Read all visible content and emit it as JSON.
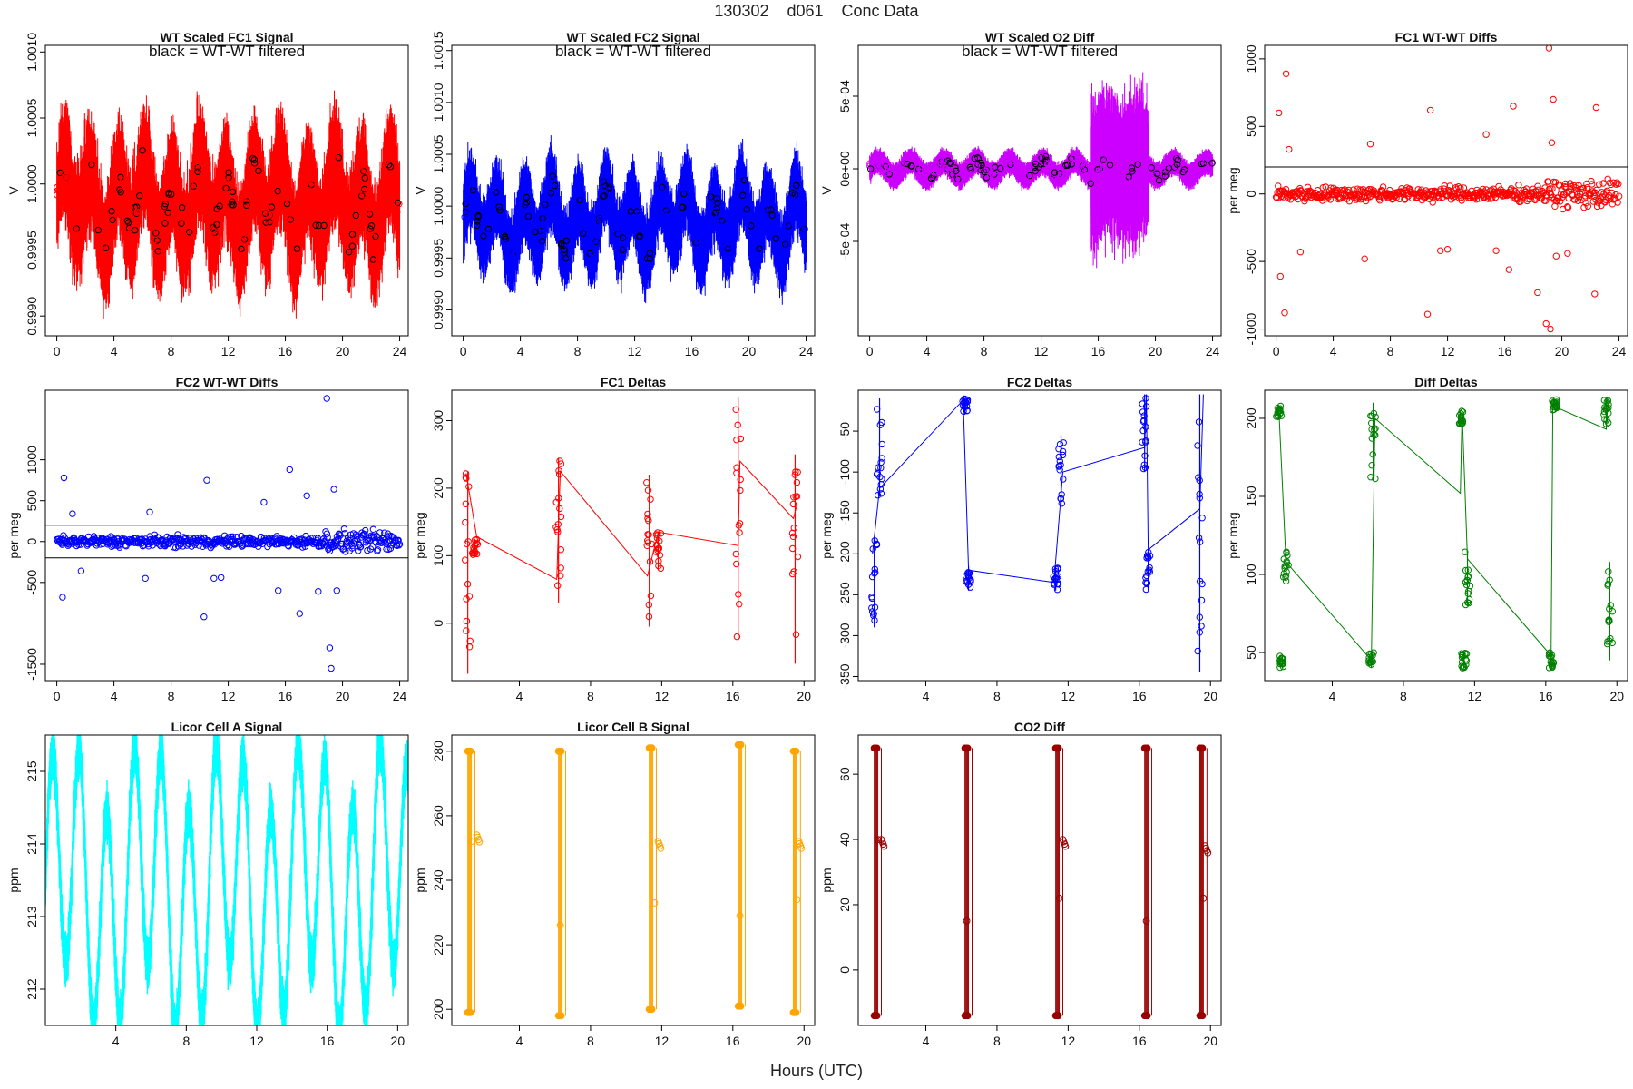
{
  "page": {
    "title": "130302    d061    Conc Data",
    "xlabel": "Hours (UTC)"
  },
  "chart_data": [
    {
      "id": "p1",
      "type": "line",
      "title": "WT Scaled FC1 Signal",
      "annotation": "black = WT-WT filtered",
      "ylabel": "V",
      "xlim": [
        -0.8,
        24.6
      ],
      "ylim": [
        0.99885,
        1.00105
      ],
      "xticks": [
        0,
        4,
        8,
        12,
        16,
        20,
        24
      ],
      "yticks": [
        0.999,
        0.9995,
        1.0,
        1.0005,
        1.001
      ],
      "ytick_labels": [
        "0.9990",
        "0.9995",
        "1.0000",
        "1.0005",
        "1.0010"
      ],
      "ytick_rotate": true,
      "color": "#ff0000",
      "overlay_color": "#000000",
      "style": "noise",
      "center": 0.99985,
      "amp": 0.00025,
      "osc_amp": 0.00025,
      "osc_period": 1.9,
      "x_range": [
        0,
        24
      ],
      "points": []
    },
    {
      "id": "p2",
      "type": "line",
      "title": "WT Scaled FC2 Signal",
      "annotation": "black = WT-WT filtered",
      "ylabel": "V",
      "xlim": [
        -0.8,
        24.6
      ],
      "ylim": [
        0.99875,
        1.00155
      ],
      "xticks": [
        0,
        4,
        8,
        12,
        16,
        20,
        24
      ],
      "yticks": [
        0.999,
        0.9995,
        1.0,
        1.0005,
        1.001,
        1.0015
      ],
      "ytick_labels": [
        "0.9990",
        "0.9995",
        "1.0000",
        "1.0005",
        "1.0010",
        "1.0015"
      ],
      "ytick_rotate": true,
      "color": "#0000ff",
      "overlay_color": "#000000",
      "style": "noise",
      "center": 0.99985,
      "amp": 0.00022,
      "osc_amp": 0.00025,
      "osc_period": 1.9,
      "x_range": [
        0,
        24
      ],
      "points": []
    },
    {
      "id": "p3",
      "type": "line",
      "title": "WT Scaled O2 Diff",
      "annotation": "black = WT-WT filtered",
      "ylabel": "V",
      "xlim": [
        -0.8,
        24.6
      ],
      "ylim": [
        -0.00115,
        0.00085
      ],
      "xticks": [
        0,
        4,
        8,
        12,
        16,
        20,
        24
      ],
      "yticks": [
        -0.0005,
        0.0,
        0.0005
      ],
      "ytick_labels": [
        "-5e-04",
        "0e+00",
        "5e-04"
      ],
      "ytick_rotate": true,
      "color": "#cc00ff",
      "overlay_color": "#000000",
      "style": "o2",
      "center": 0.0,
      "amp": 6e-05,
      "osc_amp": 5e-05,
      "osc_period": 2.3,
      "x_range": [
        0,
        24
      ],
      "points": []
    },
    {
      "id": "p4",
      "type": "scatter",
      "title": "FC1 WT-WT Diffs",
      "ylabel": "per meg",
      "xlim": [
        -0.8,
        24.6
      ],
      "ylim": [
        -1050,
        1100
      ],
      "xticks": [
        0,
        4,
        8,
        12,
        16,
        20,
        24
      ],
      "yticks": [
        -1000,
        -500,
        0,
        500,
        1000
      ],
      "ytick_labels": [
        "-1000",
        "-500",
        "0",
        "500",
        "1000"
      ],
      "ytick_rotate": true,
      "color": "#ff0000",
      "style": "scatter",
      "hlines": [
        200,
        -200
      ],
      "spread": 55,
      "x_range": [
        0,
        24
      ],
      "outliers": [
        [
          0.2,
          600
        ],
        [
          0.3,
          -610
        ],
        [
          0.6,
          -880
        ],
        [
          0.7,
          890
        ],
        [
          0.9,
          330
        ],
        [
          1.7,
          -430
        ],
        [
          6.2,
          -480
        ],
        [
          6.6,
          370
        ],
        [
          10.6,
          -890
        ],
        [
          10.8,
          620
        ],
        [
          11.5,
          -420
        ],
        [
          12.0,
          -410
        ],
        [
          14.7,
          440
        ],
        [
          15.4,
          -420
        ],
        [
          16.3,
          -560
        ],
        [
          16.6,
          650
        ],
        [
          18.3,
          -730
        ],
        [
          18.9,
          -960
        ],
        [
          19.1,
          1080
        ],
        [
          19.2,
          -1000
        ],
        [
          19.3,
          380
        ],
        [
          19.4,
          700
        ],
        [
          19.6,
          -460
        ],
        [
          20.4,
          -440
        ],
        [
          22.3,
          -740
        ],
        [
          22.4,
          640
        ]
      ]
    },
    {
      "id": "p5",
      "type": "scatter",
      "title": "FC2 WT-WT Diffs",
      "ylabel": "per meg",
      "xlim": [
        -0.8,
        24.6
      ],
      "ylim": [
        -1700,
        1850
      ],
      "xticks": [
        0,
        4,
        8,
        12,
        16,
        20,
        24
      ],
      "yticks": [
        -1500,
        -500,
        0,
        500,
        1000
      ],
      "ytick_labels": [
        "-1500",
        "-500",
        "0",
        "500",
        "1000"
      ],
      "ytick_rotate": true,
      "color": "#0000ff",
      "style": "scatter",
      "hlines": [
        200,
        -200
      ],
      "spread": 70,
      "x_range": [
        0,
        24
      ],
      "outliers": [
        [
          0.4,
          -680
        ],
        [
          0.5,
          780
        ],
        [
          1.1,
          340
        ],
        [
          1.7,
          -360
        ],
        [
          6.2,
          -450
        ],
        [
          6.5,
          360
        ],
        [
          10.3,
          -920
        ],
        [
          10.5,
          750
        ],
        [
          11.0,
          -450
        ],
        [
          11.5,
          -440
        ],
        [
          14.5,
          480
        ],
        [
          15.5,
          -600
        ],
        [
          16.3,
          880
        ],
        [
          17.0,
          -880
        ],
        [
          17.5,
          560
        ],
        [
          18.3,
          -610
        ],
        [
          18.9,
          1750
        ],
        [
          19.1,
          -1300
        ],
        [
          19.2,
          -1550
        ],
        [
          19.4,
          640
        ],
        [
          19.6,
          -600
        ]
      ]
    },
    {
      "id": "p6",
      "type": "line",
      "title": "FC1 Deltas",
      "ylabel": "per meg",
      "xlim": [
        0.2,
        20.6
      ],
      "ylim": [
        -85,
        345
      ],
      "xticks": [
        4,
        8,
        12,
        16,
        20
      ],
      "yticks": [
        0,
        100,
        200,
        300
      ],
      "ytick_labels": [
        "0",
        "100",
        "200",
        "300"
      ],
      "ytick_rotate": true,
      "color": "#ff0000",
      "style": "deltas",
      "clusters": [
        [
          1.1,
          225,
          -75
        ],
        [
          1.5,
          125,
          100
        ],
        [
          6.2,
          245,
          30
        ],
        [
          11.3,
          220,
          -5
        ],
        [
          11.8,
          135,
          80
        ],
        [
          16.3,
          335,
          -25
        ],
        [
          19.5,
          250,
          -60
        ]
      ],
      "path": [
        [
          1.0,
          222
        ],
        [
          1.6,
          128
        ],
        [
          6.1,
          65
        ],
        [
          6.3,
          225
        ],
        [
          11.2,
          70
        ],
        [
          11.8,
          135
        ],
        [
          16.3,
          115
        ],
        [
          16.4,
          240
        ],
        [
          19.4,
          155
        ],
        [
          19.6,
          175
        ]
      ]
    },
    {
      "id": "p7",
      "type": "line",
      "title": "FC2 Deltas",
      "ylabel": "per meg",
      "xlim": [
        0.2,
        20.6
      ],
      "ylim": [
        -355,
        0
      ],
      "xticks": [
        4,
        8,
        12,
        16,
        20
      ],
      "yticks": [
        -350,
        -300,
        -250,
        -200,
        -150,
        -100,
        -50
      ],
      "ytick_labels": [
        "-350",
        "-300",
        "-250",
        "-200",
        "-150",
        "-100",
        "-50"
      ],
      "ytick_rotate": true,
      "color": "#0000ff",
      "style": "deltas",
      "clusters": [
        [
          1.1,
          -180,
          -290
        ],
        [
          1.4,
          -10,
          -130
        ],
        [
          6.2,
          -10,
          -30
        ],
        [
          6.4,
          -215,
          -245
        ],
        [
          11.3,
          -215,
          -245
        ],
        [
          11.6,
          -55,
          -140
        ],
        [
          16.3,
          -5,
          -100
        ],
        [
          16.5,
          -195,
          -245
        ],
        [
          19.4,
          -5,
          -345
        ]
      ],
      "path": [
        [
          1.0,
          -200
        ],
        [
          1.4,
          -120
        ],
        [
          6.1,
          -12
        ],
        [
          6.4,
          -220
        ],
        [
          11.2,
          -235
        ],
        [
          11.7,
          -100
        ],
        [
          16.3,
          -70
        ],
        [
          16.4,
          -5
        ],
        [
          16.5,
          -195
        ],
        [
          19.4,
          -145
        ],
        [
          19.6,
          -5
        ]
      ]
    },
    {
      "id": "p8",
      "type": "line",
      "title": "Diff Deltas",
      "ylabel": "per meg",
      "xlim": [
        0.2,
        20.6
      ],
      "ylim": [
        32,
        218
      ],
      "xticks": [
        4,
        8,
        12,
        16,
        20
      ],
      "yticks": [
        50,
        100,
        150,
        200
      ],
      "ytick_labels": [
        "50",
        "100",
        "150",
        "200"
      ],
      "ytick_rotate": true,
      "color": "#008000",
      "style": "deltas",
      "clusters": [
        [
          1.0,
          200,
          208
        ],
        [
          1.2,
          40,
          48
        ],
        [
          1.4,
          95,
          115
        ],
        [
          6.2,
          40,
          50
        ],
        [
          6.3,
          160,
          210
        ],
        [
          11.2,
          195,
          205
        ],
        [
          11.4,
          40,
          50
        ],
        [
          11.6,
          80,
          115
        ],
        [
          16.3,
          40,
          50
        ],
        [
          16.5,
          205,
          212
        ],
        [
          19.4,
          195,
          212
        ],
        [
          19.6,
          45,
          108
        ]
      ],
      "path": [
        [
          1.0,
          205
        ],
        [
          1.4,
          108
        ],
        [
          6.2,
          45
        ],
        [
          6.4,
          200
        ],
        [
          11.2,
          152
        ],
        [
          11.3,
          205
        ],
        [
          11.6,
          110
        ],
        [
          16.3,
          48
        ],
        [
          16.4,
          208
        ],
        [
          19.4,
          193
        ],
        [
          19.5,
          212
        ]
      ]
    },
    {
      "id": "p9",
      "type": "line",
      "title": "Licor Cell A Signal",
      "ylabel": "ppm",
      "xlim": [
        0.0,
        20.6
      ],
      "ylim": [
        211.5,
        215.5
      ],
      "xticks": [
        4,
        8,
        12,
        16,
        20
      ],
      "yticks": [
        212,
        213,
        214,
        215
      ],
      "ytick_labels": [
        "212",
        "213",
        "214",
        "215"
      ],
      "ytick_rotate": true,
      "color": "#00ffff",
      "style": "licorA",
      "center": 213.4,
      "amp": 0.35,
      "osc_amp": 1.6,
      "osc_period": 1.55,
      "x_range": [
        0.0,
        20.6
      ]
    },
    {
      "id": "p10",
      "type": "line",
      "title": "Licor Cell B Signal",
      "ylabel": "ppm",
      "xlim": [
        0.2,
        20.6
      ],
      "ylim": [
        195,
        285
      ],
      "xticks": [
        4,
        8,
        12,
        16,
        20
      ],
      "yticks": [
        200,
        220,
        240,
        260,
        280
      ],
      "ytick_labels": [
        "200",
        "220",
        "240",
        "260",
        "280"
      ],
      "ytick_rotate": true,
      "color": "#ffa500",
      "style": "licorB",
      "groups": [
        [
          1.1,
          199,
          280,
          1.3,
          252,
          1.6,
          254
        ],
        [
          6.2,
          198,
          280,
          6.3,
          226,
          null,
          null
        ],
        [
          11.3,
          200,
          281,
          11.6,
          233,
          11.8,
          252
        ],
        [
          16.3,
          201,
          282,
          16.4,
          229,
          null,
          null
        ],
        [
          19.4,
          199,
          280,
          19.6,
          234,
          19.7,
          252
        ]
      ]
    },
    {
      "id": "p11",
      "type": "line",
      "title": "CO2 Diff",
      "ylabel": "ppm",
      "xlim": [
        0.2,
        20.6
      ],
      "ylim": [
        -17,
        72
      ],
      "xticks": [
        4,
        8,
        12,
        16,
        20
      ],
      "yticks": [
        0,
        20,
        40,
        60
      ],
      "ytick_labels": [
        "0",
        "20",
        "40",
        "60"
      ],
      "ytick_rotate": true,
      "color": "#990000",
      "style": "licorB",
      "groups": [
        [
          1.1,
          -14,
          68,
          1.3,
          40,
          1.5,
          40
        ],
        [
          6.2,
          -14,
          68,
          6.3,
          15,
          null,
          null
        ],
        [
          11.3,
          -14,
          68,
          11.5,
          22,
          11.7,
          40
        ],
        [
          16.3,
          -14,
          68,
          16.4,
          15,
          null,
          null
        ],
        [
          19.4,
          -14,
          68,
          19.6,
          22,
          19.7,
          38
        ]
      ]
    }
  ]
}
